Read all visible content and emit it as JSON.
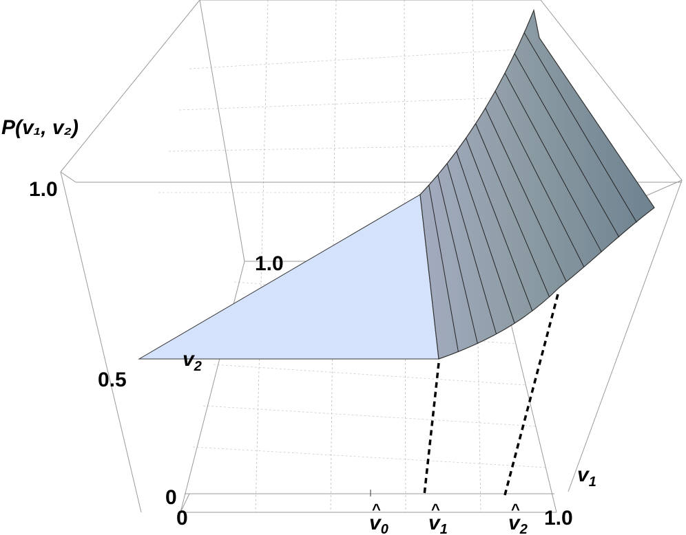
{
  "chart_data": {
    "type": "surface3d",
    "zlabel": "P(v₁, v₂)",
    "zlabel_parts": {
      "main": "P(",
      "v1": "v",
      "s1": "1",
      "comma": ", ",
      "v2": "v",
      "s2": "2",
      "close": ")"
    },
    "xlabel": {
      "v": "v",
      "sub": "1"
    },
    "ylabel": {
      "v": "v",
      "sub": "2"
    },
    "z_ticks": [
      "0",
      "0.5",
      "1.0"
    ],
    "x_ticks": [
      "0",
      "1.0"
    ],
    "x_special_ticks": [
      {
        "hat": "^",
        "v": "v",
        "sub": "0"
      },
      {
        "hat": "^",
        "v": "v",
        "sub": "1"
      },
      {
        "hat": "^",
        "v": "v",
        "sub": "2"
      }
    ],
    "y_ticks": [
      "1.0"
    ],
    "grid": true,
    "colors": {
      "flat_region": "#d4e2fb",
      "curved_region": "#7a8c98",
      "box": "#999999",
      "dashed": "#000000"
    }
  }
}
